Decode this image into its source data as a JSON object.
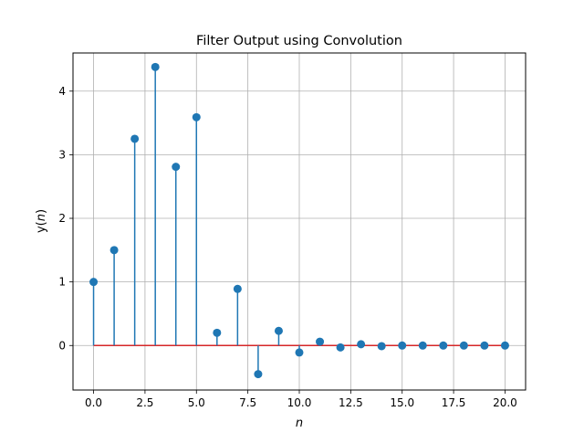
{
  "chart_data": {
    "type": "stem",
    "title": "Filter Output using Convolution",
    "xlabel": "n",
    "ylabel": "y(n)",
    "xlim": [
      -1.0,
      21.0
    ],
    "ylim": [
      -0.7,
      4.6
    ],
    "xticks": [
      0.0,
      2.5,
      5.0,
      7.5,
      10.0,
      12.5,
      15.0,
      17.5,
      20.0
    ],
    "xtick_labels": [
      "0.0",
      "2.5",
      "5.0",
      "7.5",
      "10.0",
      "12.5",
      "15.0",
      "17.5",
      "20.0"
    ],
    "yticks": [
      0,
      1,
      2,
      3,
      4
    ],
    "ytick_labels": [
      "0",
      "1",
      "2",
      "3",
      "4"
    ],
    "grid": true,
    "series": [
      {
        "x": [
          0,
          1,
          2,
          3,
          4,
          5,
          6,
          7,
          8,
          9,
          10,
          11,
          12,
          13,
          14,
          15,
          16,
          17,
          18,
          19,
          20
        ],
        "y": [
          1.0,
          1.5,
          3.25,
          4.38,
          2.81,
          3.59,
          0.2,
          0.89,
          -0.45,
          0.23,
          -0.11,
          0.06,
          -0.03,
          0.02,
          -0.01,
          0.0,
          0.0,
          0.0,
          0.0,
          0.0,
          0.0
        ]
      }
    ],
    "colors": {
      "stem": "#1f77b4",
      "marker": "#1f77b4",
      "baseline": "#d62728",
      "grid": "#b0b0b0"
    }
  }
}
